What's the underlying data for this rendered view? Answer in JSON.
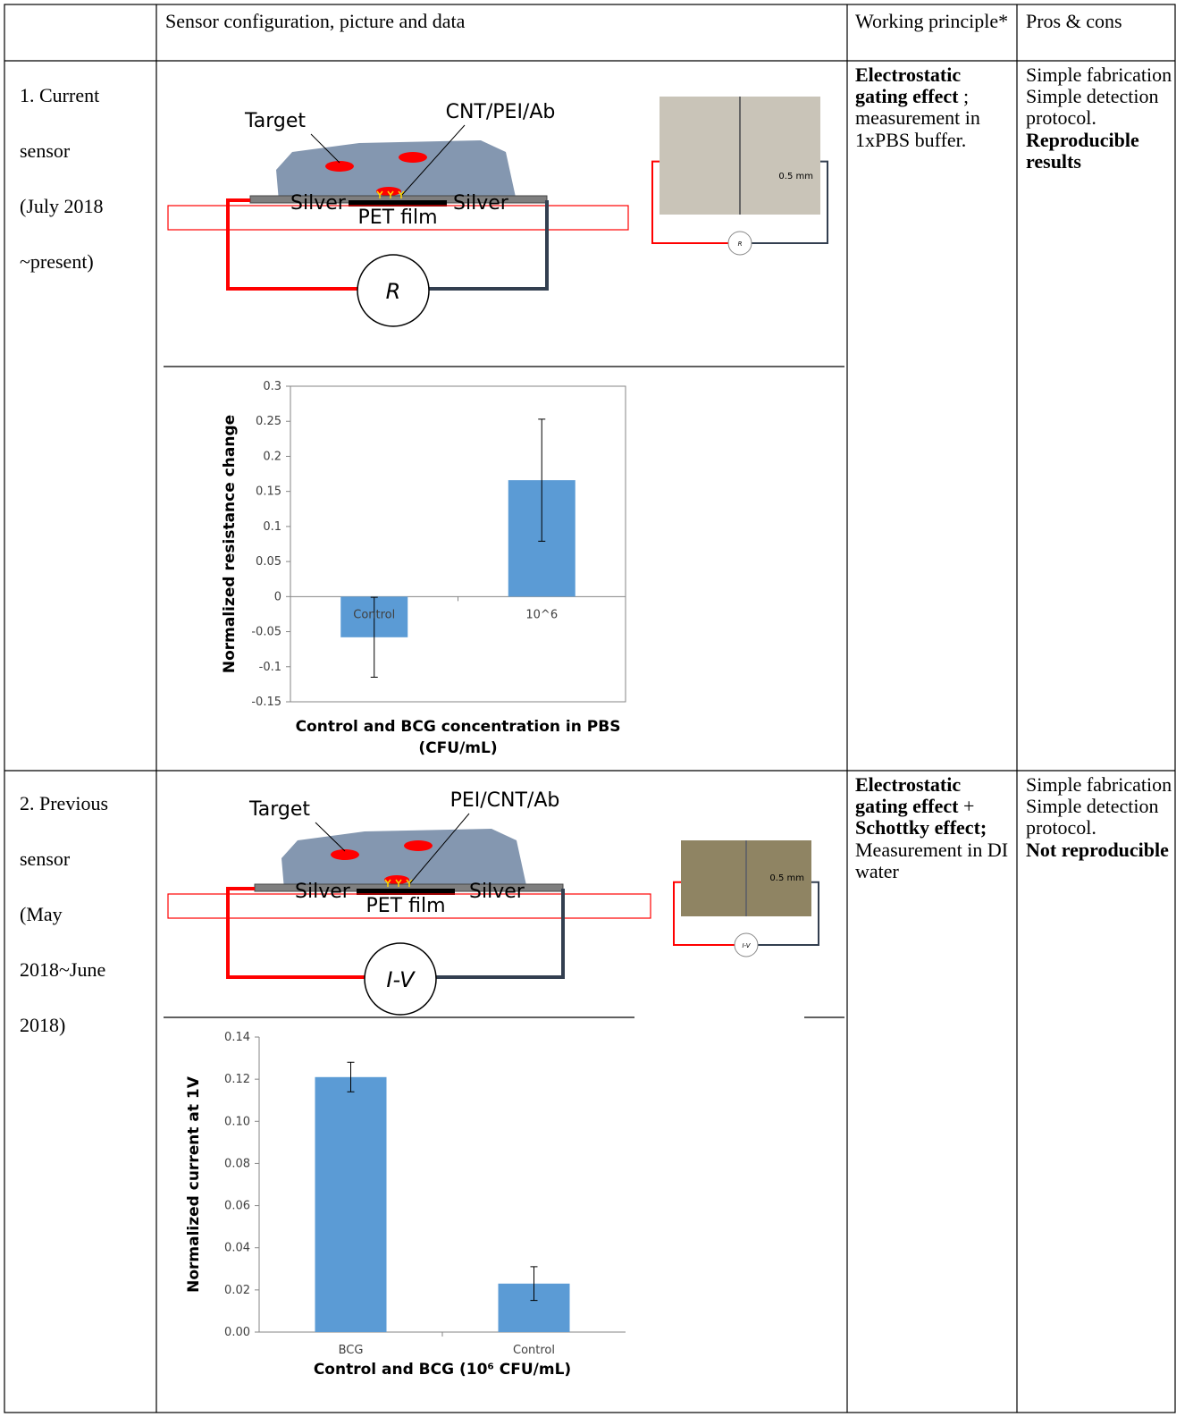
{
  "table": {
    "header": [
      "Sensor configuration, picture and data",
      "Working principle*",
      "Pros & cons"
    ],
    "rows": [
      {
        "label": [
          "1. Current",
          "sensor",
          "(July 2018",
          "~present)"
        ],
        "diagram": {
          "target": "Target",
          "probe": "CNT/PEI/Ab",
          "electrodes": [
            "Silver",
            "Silver"
          ],
          "substrate": "PET film",
          "meter": "R",
          "scale": "0.5 mm",
          "photo_meter": "R"
        },
        "chart": {
          "type": "bar",
          "y_label": "Normalized resistance change",
          "x_label": [
            "Control and BCG concentration in PBS",
            "(CFU/mL)"
          ],
          "categories": [
            "Control",
            "10^6"
          ],
          "values": [
            -0.058,
            0.166
          ],
          "errors": [
            0.057,
            0.087
          ],
          "color": "#5b9bd5",
          "ylim": [
            -0.15,
            0.3
          ],
          "yticks": [
            -0.15,
            -0.1,
            -0.05,
            0,
            0.05,
            0.1,
            0.15,
            0.2,
            0.25,
            0.3
          ],
          "frame": true
        },
        "principle": [
          {
            "text": "Electrostatic gating effect",
            "bold": true
          },
          {
            "text": " ; measurement in 1xPBS buffer.",
            "bold": false
          }
        ],
        "pros": [
          {
            "text": "Simple fabrication",
            "bold": false
          },
          {
            "text": "Simple detection protocol.",
            "bold": false
          },
          {
            "text": "Reproducible results",
            "bold": true
          }
        ]
      },
      {
        "label": [
          "2. Previous",
          "sensor",
          "(May",
          "2018~June",
          "2018)"
        ],
        "diagram": {
          "target": "Target",
          "probe": "PEI/CNT/Ab",
          "electrodes": [
            "Silver",
            "Silver"
          ],
          "substrate": "PET film",
          "meter": "I-V",
          "scale": "0.5 mm",
          "photo_meter": "I-V"
        },
        "chart": {
          "type": "bar",
          "y_label": "Normalized current at 1V",
          "x_label": [
            "Control and BCG (10⁶ CFU/mL)"
          ],
          "categories": [
            "BCG",
            "Control"
          ],
          "values": [
            0.121,
            0.023
          ],
          "errors": [
            0.007,
            0.008
          ],
          "color": "#5b9bd5",
          "ylim": [
            0,
            0.14
          ],
          "yticks": [
            {
              "value": 0,
              "label": "0.00"
            },
            {
              "value": 0.02,
              "label": "0.02"
            },
            {
              "value": 0.04,
              "label": "0.04"
            },
            {
              "value": 0.06,
              "label": "0.06"
            },
            {
              "value": 0.08,
              "label": "0.08"
            },
            {
              "value": 0.1,
              "label": "0.10"
            },
            {
              "value": 0.12,
              "label": "0.12"
            },
            {
              "value": 0.14,
              "label": "0.14"
            }
          ],
          "frame": false
        },
        "principle": [
          {
            "text": "Electrostatic gating effect",
            "bold": true
          },
          {
            "text": " + ",
            "bold": false
          },
          {
            "text": "Schottky effect;",
            "bold": true
          },
          {
            "text": " Measurement in DI water",
            "bold": false
          }
        ],
        "pros": [
          {
            "text": "Simple fabrication",
            "bold": false
          },
          {
            "text": "Simple detection protocol.",
            "bold": false
          },
          {
            "text": "Not reproducible",
            "bold": true
          }
        ]
      }
    ]
  }
}
